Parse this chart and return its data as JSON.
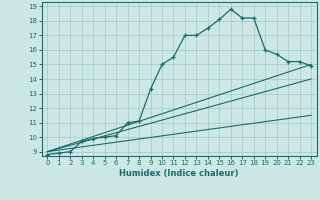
{
  "xlabel": "Humidex (Indice chaleur)",
  "ylabel": "",
  "background_color": "#cde8e4",
  "grid_color": "#a8ccca",
  "line_color": "#1a6b6b",
  "xlim": [
    -0.5,
    23.5
  ],
  "ylim": [
    8.7,
    19.3
  ],
  "xticks": [
    0,
    1,
    2,
    3,
    4,
    5,
    6,
    7,
    8,
    9,
    10,
    11,
    12,
    13,
    14,
    15,
    16,
    17,
    18,
    19,
    20,
    21,
    22,
    23
  ],
  "yticks": [
    9,
    10,
    11,
    12,
    13,
    14,
    15,
    16,
    17,
    18,
    19
  ],
  "line1_x": [
    0,
    1,
    2,
    3,
    4,
    5,
    6,
    7,
    8,
    9,
    10,
    11,
    12,
    13,
    14,
    15,
    16,
    17,
    18,
    19,
    20,
    21,
    22,
    23
  ],
  "line1_y": [
    8.8,
    8.9,
    9.0,
    9.7,
    9.9,
    10.0,
    10.1,
    11.0,
    11.1,
    13.3,
    15.0,
    15.5,
    17.0,
    17.0,
    17.5,
    18.1,
    18.8,
    18.2,
    18.2,
    16.0,
    15.7,
    15.2,
    15.2,
    14.9
  ],
  "line2_x": [
    0,
    23
  ],
  "line2_y": [
    9.0,
    15.0
  ],
  "line3_x": [
    0,
    23
  ],
  "line3_y": [
    9.0,
    14.0
  ],
  "line4_x": [
    0,
    23
  ],
  "line4_y": [
    9.0,
    11.5
  ]
}
